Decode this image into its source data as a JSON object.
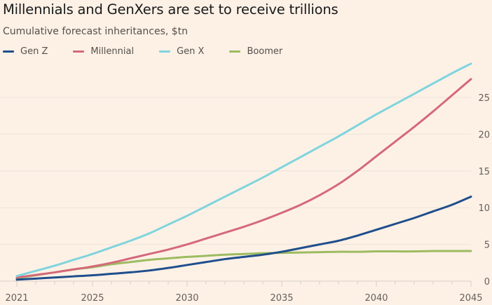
{
  "chart_data": {
    "type": "line",
    "title": "Millennials and GenXers are set to receive trillions",
    "subtitle": "Cumulative forecast inheritances, $tn",
    "xlabel": "",
    "ylabel": "$tn",
    "x": [
      2021,
      2022,
      2023,
      2024,
      2025,
      2026,
      2027,
      2028,
      2029,
      2030,
      2031,
      2032,
      2033,
      2034,
      2035,
      2036,
      2037,
      2038,
      2039,
      2040,
      2041,
      2042,
      2043,
      2044,
      2045
    ],
    "xlim": [
      2021,
      2045
    ],
    "ylim": [
      0,
      30
    ],
    "x_ticks": [
      2021,
      2025,
      2030,
      2035,
      2040,
      2045
    ],
    "x_tick_labels": [
      "2021",
      "2025",
      "2030",
      "2035",
      "2040",
      "2045"
    ],
    "y_ticks": [
      0,
      5,
      10,
      15,
      20,
      25
    ],
    "y_tick_labels": [
      "0",
      "5",
      "10",
      "15",
      "20",
      "25"
    ],
    "grid": true,
    "legend_position": "top-left",
    "series": [
      {
        "name": "Gen Z",
        "color": "#1f4e8c",
        "values": [
          0.2,
          0.35,
          0.5,
          0.65,
          0.8,
          1.0,
          1.2,
          1.45,
          1.8,
          2.2,
          2.6,
          3.0,
          3.3,
          3.6,
          4.0,
          4.5,
          5.0,
          5.5,
          6.2,
          7.0,
          7.8,
          8.6,
          9.5,
          10.4,
          11.5
        ]
      },
      {
        "name": "Millennial",
        "color": "#d4697a",
        "values": [
          0.5,
          0.85,
          1.2,
          1.6,
          2.0,
          2.5,
          3.1,
          3.7,
          4.3,
          5.0,
          5.8,
          6.6,
          7.4,
          8.3,
          9.3,
          10.4,
          11.7,
          13.2,
          15.0,
          17.0,
          19.0,
          21.0,
          23.1,
          25.3,
          27.5
        ]
      },
      {
        "name": "Gen X",
        "color": "#80d4dd",
        "values": [
          0.7,
          1.4,
          2.1,
          2.9,
          3.7,
          4.6,
          5.5,
          6.5,
          7.7,
          8.9,
          10.2,
          11.5,
          12.8,
          14.1,
          15.5,
          16.9,
          18.3,
          19.7,
          21.2,
          22.7,
          24.1,
          25.5,
          26.9,
          28.3,
          29.6
        ]
      },
      {
        "name": "Boomer",
        "color": "#9dbb60",
        "values": [
          0.4,
          0.8,
          1.2,
          1.6,
          1.9,
          2.3,
          2.6,
          2.9,
          3.1,
          3.3,
          3.45,
          3.6,
          3.7,
          3.8,
          3.85,
          3.9,
          3.95,
          4.0,
          4.0,
          4.05,
          4.05,
          4.05,
          4.1,
          4.1,
          4.1
        ]
      }
    ]
  }
}
